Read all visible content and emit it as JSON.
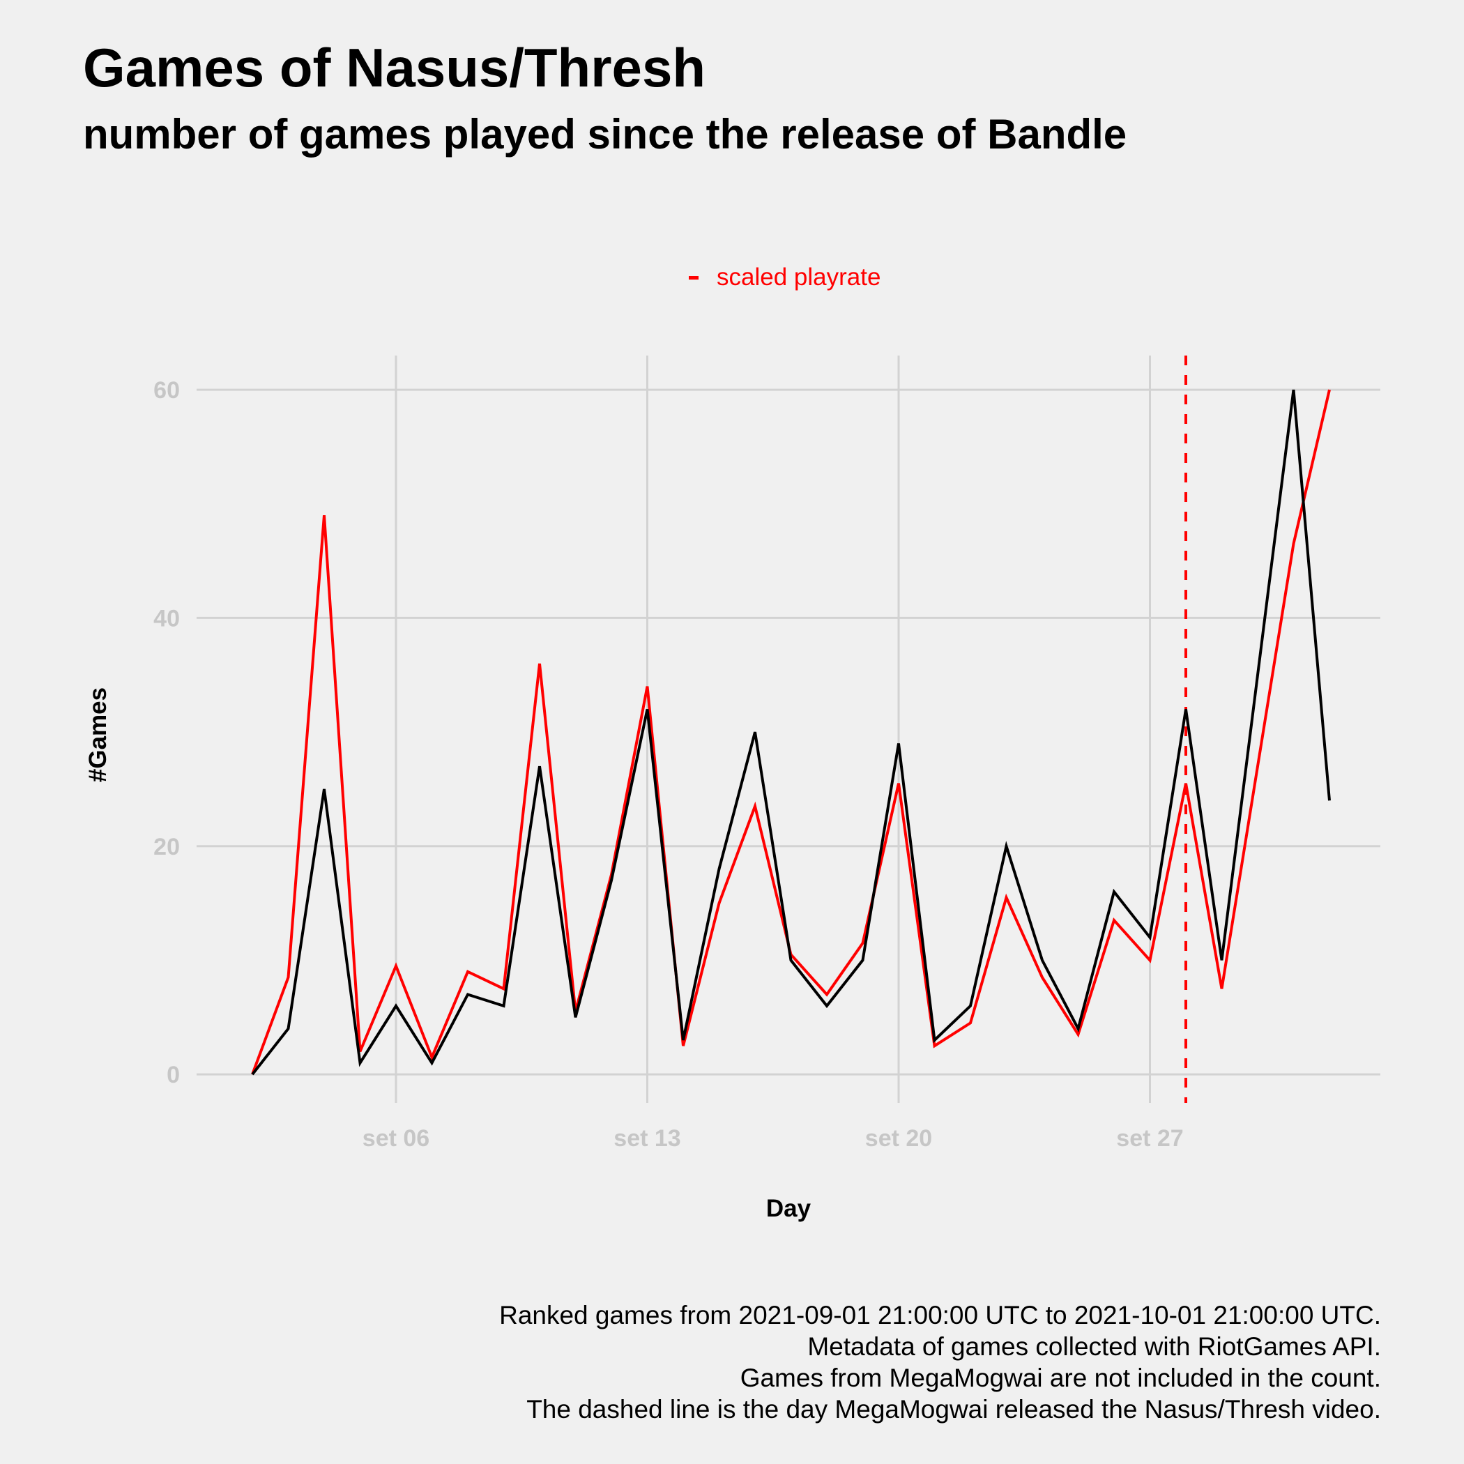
{
  "chart_data": {
    "type": "line",
    "title": "Games of Nasus/Thresh",
    "subtitle": "number of games played since the release of Bandle",
    "xlabel": "Day",
    "ylabel": "#Games",
    "x_tick_labels": [
      "set 06",
      "set 13",
      "set 20",
      "set 27"
    ],
    "y_ticks": [
      0,
      20,
      40,
      60
    ],
    "ylim": [
      -2.5,
      63
    ],
    "x_start_date": "2021-09-02",
    "x_tick_dates": [
      "2021-09-06",
      "2021-09-13",
      "2021-09-20",
      "2021-09-27"
    ],
    "x": [
      "2021-09-02",
      "2021-09-03",
      "2021-09-04",
      "2021-09-05",
      "2021-09-06",
      "2021-09-07",
      "2021-09-08",
      "2021-09-09",
      "2021-09-10",
      "2021-09-11",
      "2021-09-12",
      "2021-09-13",
      "2021-09-14",
      "2021-09-15",
      "2021-09-16",
      "2021-09-17",
      "2021-09-18",
      "2021-09-19",
      "2021-09-20",
      "2021-09-21",
      "2021-09-22",
      "2021-09-23",
      "2021-09-24",
      "2021-09-25",
      "2021-09-26",
      "2021-09-27",
      "2021-09-28",
      "2021-09-29",
      "2021-09-30",
      "2021-10-01",
      "2021-10-02"
    ],
    "series": [
      {
        "name": "",
        "color": "#000000",
        "values": [
          0,
          4,
          25,
          1,
          6,
          1,
          7,
          6,
          27,
          5,
          17,
          32,
          3,
          18,
          30,
          10,
          6,
          10,
          29,
          3,
          6,
          20,
          10,
          4,
          16,
          12,
          32,
          10,
          35,
          60,
          24
        ]
      },
      {
        "name": "scaled playrate",
        "color": "#ff0000",
        "values": [
          0,
          8.5,
          49,
          2,
          9.5,
          1.5,
          9,
          7.5,
          36,
          5.5,
          17.5,
          34,
          2.5,
          15,
          23.5,
          10.5,
          7,
          11.5,
          25.5,
          2.5,
          4.5,
          15.5,
          8.5,
          3.5,
          13.5,
          10,
          25.5,
          7.5,
          27,
          46.5,
          60
        ]
      }
    ],
    "reference_line": {
      "date": "2021-09-28",
      "style": "dashed",
      "color": "#ff0000"
    },
    "legend": {
      "position": "top",
      "label": "scaled playrate",
      "color": "#ff0000"
    },
    "grid": true
  },
  "caption": [
    "Ranked games from 2021-09-01 21:00:00 UTC to 2021-10-01 21:00:00 UTC.",
    "Metadata of games collected with RiotGames API.",
    "Games from MegaMogwai are not included in the count.",
    "The dashed line is the day MegaMogwai released the Nasus/Thresh video."
  ]
}
